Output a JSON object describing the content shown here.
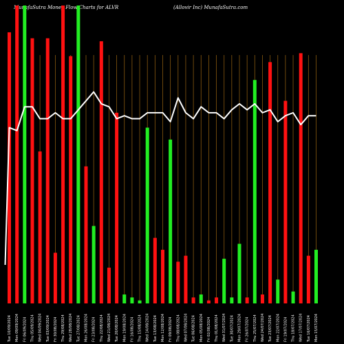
{
  "header": {
    "left_title": "MunafaSutra  Money Flow  Charts for ALVR",
    "right_title": "(Allovir Inc) MunafaSutra.com"
  },
  "colors": {
    "background": "#000000",
    "up": "#22ee22",
    "down": "#ff1111",
    "line": "#ffffff",
    "grid": "#8a5a10"
  },
  "chart_data": {
    "type": "bar",
    "ylim": [
      0,
      100
    ],
    "categories": [
      "Tue 10/09/2024",
      "Mon 09/09/2024",
      "Fri 06/09/2024",
      "Thu 05/09/2024",
      "Wed 04/09/2024",
      "Tue 03/09/2024",
      "Fri 30/08/2024",
      "Thu 29/08/2024",
      "Wed 28/08/2024",
      "Tue 27/08/2024",
      "Mon 26/08/2024",
      "Fri 23/08/2024",
      "Thu 22/08/2024",
      "Wed 21/08/2024",
      "Tue 20/08/2024",
      "Mon 19/08/2024",
      "Fri 16/08/2024",
      "Thu 15/08/2024",
      "Wed 14/08/2024",
      "Tue 13/08/2024",
      "Mon 12/08/2024",
      "Fri 09/08/2024",
      "Thu 08/08/2024",
      "Wed 07/08/2024",
      "Tue 06/08/2024",
      "Mon 05/08/2024",
      "Fri 02/08/2024",
      "Thu 01/08/2024",
      "Wed 31/07/2024",
      "Tue 30/07/2024",
      "Mon 29/07/2024",
      "Fri 26/07/2024",
      "Thu 25/07/2024",
      "Wed 24/07/2024",
      "Tue 23/07/2024",
      "Mon 22/07/2024",
      "Fri 19/07/2024",
      "Thu 18/07/2024",
      "Wed 17/07/2024",
      "Tue 16/07/2024",
      "Mon 15/07/2024"
    ],
    "x_tick_labels": [
      "Tue 10/09/2024",
      "Mon 09/09/2024",
      "Fri 06/09/2024",
      "Thu 05/09/2024",
      "Wed 04/09/2024",
      "Tue 03/09/2024",
      "Fri 30/08/2024",
      "Thu 29/08/2024",
      "Wed 28/08/2024",
      "Tue 27/08/2024",
      "Mon 26/08/2024",
      "Fri 23/08/2024",
      "Thu 22/08/2024",
      "Wed 21/08/2024",
      "Tue 20/08/2024",
      "Mon 19/08/2024",
      "Fri 16/08/2024",
      "Thu 15/08/2024",
      "Wed 14/08/2024",
      "Tue 13/08/2024",
      "Mon 12/08/2024",
      "Fri 09/08/2024",
      "Thu 08/08/2024",
      "Wed 07/08/2024",
      "Tue 06/08/2024",
      "Mon 05/08/2024",
      "Fri 02/08/2024",
      "Thu 01/08/2024",
      "Wed 31/07/2024",
      "Tue 30/07/2024",
      "Mon 29/07/2024",
      "Fri 26/07/2024",
      "Thu 25/07/2024",
      "Wed 24/07/2024",
      "Tue 23/07/2024",
      "Mon 22/07/2024",
      "Fri 19/07/2024",
      "Thu 18/07/2024",
      "Wed 17/07/2024",
      "Tue 16/07/2024",
      "Mon 15/07/2024"
    ],
    "series": [
      {
        "values": [
          91,
          100,
          100,
          89,
          51,
          89,
          17,
          100,
          83,
          100,
          46,
          26,
          88,
          12,
          64,
          3,
          2,
          1,
          59,
          22,
          18,
          55,
          14,
          16,
          2,
          3,
          1,
          2,
          15,
          2,
          20,
          2,
          75,
          3,
          81,
          8,
          68,
          4,
          84,
          16,
          18
        ],
        "colors": [
          "down",
          "down",
          "up",
          "down",
          "down",
          "down",
          "down",
          "down",
          "down",
          "up",
          "down",
          "up",
          "down",
          "down",
          "down",
          "up",
          "up",
          "up",
          "up",
          "down",
          "down",
          "up",
          "down",
          "down",
          "down",
          "up",
          "down",
          "down",
          "up",
          "up",
          "up",
          "down",
          "up",
          "down",
          "down",
          "up",
          "down",
          "up",
          "down",
          "down",
          "up"
        ]
      },
      {
        "values": [
          59,
          58,
          66,
          66,
          62,
          62,
          64,
          62,
          62,
          65,
          68,
          71,
          67,
          66,
          62,
          63,
          62,
          62,
          64,
          64,
          64,
          61,
          69,
          64,
          62,
          66,
          64,
          64,
          62,
          65,
          67,
          65,
          67,
          64,
          65,
          61,
          63,
          64,
          60,
          63,
          63
        ]
      }
    ],
    "grid": true
  }
}
